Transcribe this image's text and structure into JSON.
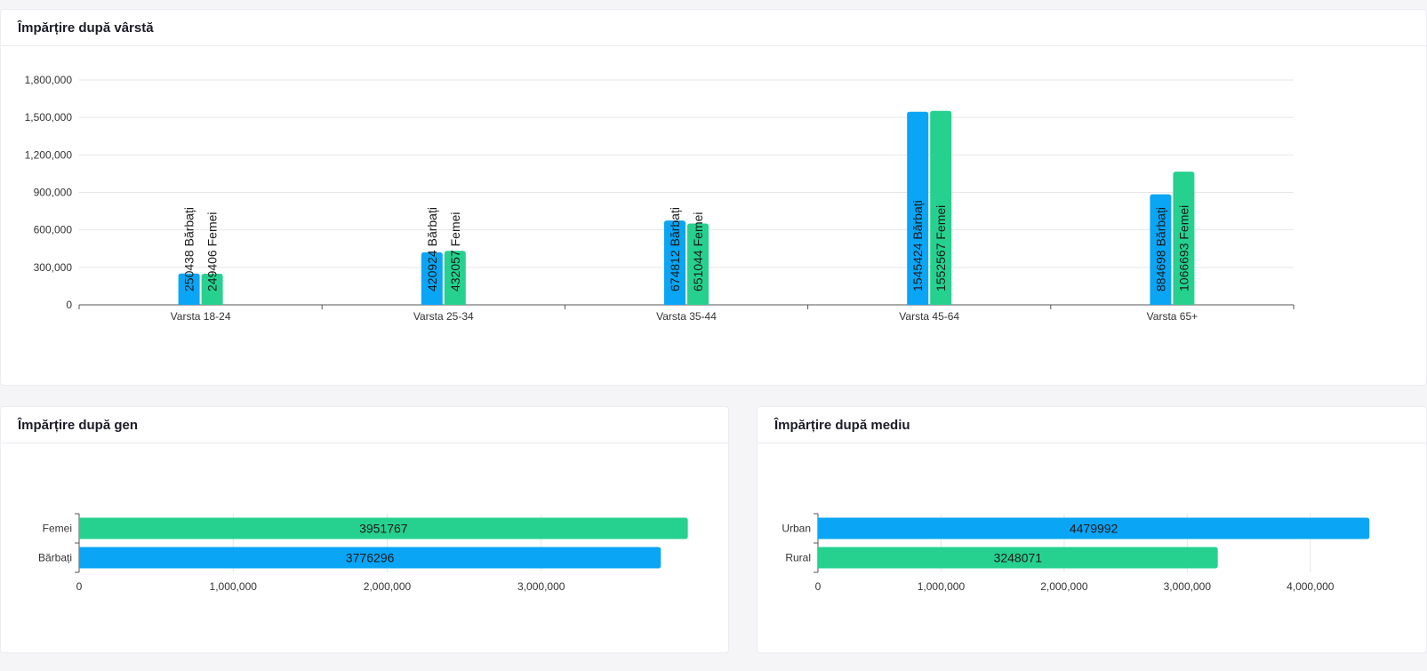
{
  "age_card": {
    "title": "Împărțire după vârstă"
  },
  "gender_card": {
    "title": "Împărțire după gen"
  },
  "area_card": {
    "title": "Împărțire după mediu"
  },
  "colors": {
    "men": "#0aa5f5",
    "women": "#26d18f",
    "grid": "#e6e6e6",
    "axis": "#555555"
  },
  "chart_data": [
    {
      "type": "bar",
      "categories": [
        "Varsta 18-24",
        "Varsta 25-34",
        "Varsta 35-44",
        "Varsta 45-64",
        "Varsta 65+"
      ],
      "series": [
        {
          "name": "Bărbați",
          "values": [
            250438,
            420924,
            674812,
            1545424,
            884698
          ]
        },
        {
          "name": "Femei",
          "values": [
            249406,
            432057,
            651044,
            1552567,
            1066693
          ]
        }
      ],
      "data_labels": [
        [
          "250438 Bărbați",
          "420924 Bărbați",
          "674812 Bărbați",
          "1545424 Bărbați",
          "884698 Bărbați"
        ],
        [
          "249406 Femei",
          "432057 Femei",
          "651044 Femei",
          "1552567 Femei",
          "1066693 Femei"
        ]
      ],
      "yticks": [
        "0",
        "300,000",
        "600,000",
        "900,000",
        "1,200,000",
        "1,500,000",
        "1,800,000"
      ],
      "ylim": [
        0,
        1800000
      ],
      "grid": true
    },
    {
      "type": "bar",
      "orientation": "horizontal",
      "categories": [
        "Femei",
        "Bărbați"
      ],
      "values": [
        3951767,
        3776296
      ],
      "data_labels": [
        "3951767",
        "3776296"
      ],
      "xticks": [
        "0",
        "1,000,000",
        "2,000,000",
        "3,000,000"
      ],
      "xlim": [
        0,
        4000000
      ],
      "grid": true
    },
    {
      "type": "bar",
      "orientation": "horizontal",
      "categories": [
        "Urban",
        "Rural"
      ],
      "values": [
        4479992,
        3248071
      ],
      "data_labels": [
        "4479992",
        "3248071"
      ],
      "xticks": [
        "0",
        "1,000,000",
        "2,000,000",
        "3,000,000",
        "4,000,000"
      ],
      "xlim": [
        0,
        4500000
      ],
      "grid": true
    }
  ]
}
